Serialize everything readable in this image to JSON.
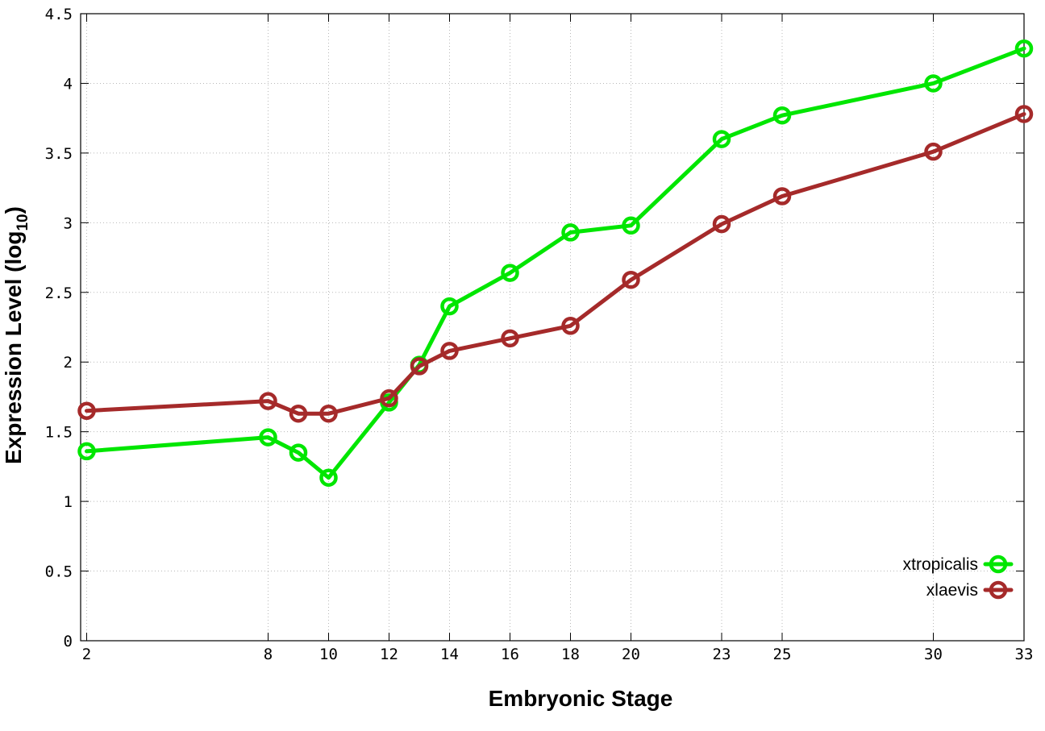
{
  "chart_data": {
    "type": "line",
    "title": "",
    "xlabel": "Embryonic Stage",
    "ylabel": {
      "main": "Expression Level (log",
      "subscript": "10",
      "close": ")"
    },
    "xlim": [
      1.8,
      33
    ],
    "ylim": [
      0,
      4.5
    ],
    "x_ticks": [
      2,
      8,
      10,
      12,
      14,
      16,
      18,
      20,
      23,
      25,
      30,
      33
    ],
    "x_tick_labels": [
      "2",
      "8",
      "10",
      "12",
      "14",
      "16",
      "18",
      "20",
      "23",
      "25",
      "30",
      "33"
    ],
    "y_ticks": [
      0,
      0.5,
      1,
      1.5,
      2,
      2.5,
      3,
      3.5,
      4,
      4.5
    ],
    "y_tick_labels": [
      "0",
      "0.5",
      "1",
      "1.5",
      "2",
      "2.5",
      "3",
      "3.5",
      "4",
      "4.5"
    ],
    "grid": true,
    "legend_position": "bottom-right",
    "x": [
      2,
      8,
      9,
      10,
      12,
      13,
      14,
      16,
      18,
      20,
      23,
      25,
      30,
      33
    ],
    "series": [
      {
        "name": "xtropicalis",
        "color": "#00e600",
        "values": [
          1.36,
          1.46,
          1.35,
          1.17,
          1.71,
          1.98,
          2.4,
          2.64,
          2.93,
          2.98,
          3.6,
          3.77,
          4.0,
          4.25
        ]
      },
      {
        "name": "xlaevis",
        "color": "#a52a2a",
        "values": [
          1.65,
          1.72,
          1.63,
          1.63,
          1.74,
          1.97,
          2.08,
          2.17,
          2.26,
          2.59,
          2.99,
          3.19,
          3.51,
          3.78
        ]
      }
    ]
  }
}
